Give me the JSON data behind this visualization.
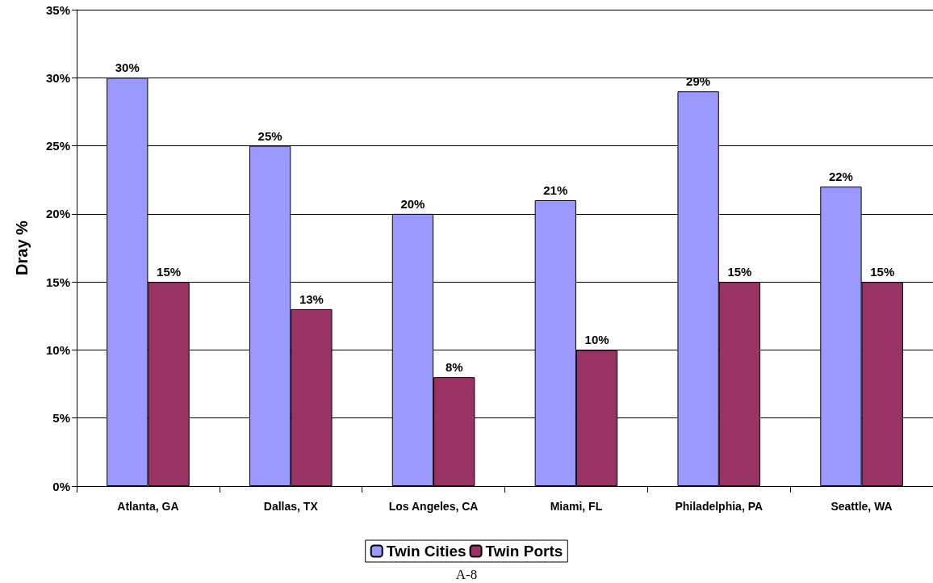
{
  "chart_data": {
    "type": "bar",
    "ylabel": "Dray %",
    "categories": [
      "Atlanta, GA",
      "Dallas, TX",
      "Los Angeles, CA",
      "Miami, FL",
      "Philadelphia, PA",
      "Seattle, WA"
    ],
    "series": [
      {
        "name": "Twin Cities",
        "color": "#9999ff",
        "values": [
          30,
          25,
          20,
          21,
          29,
          22
        ],
        "value_labels": [
          "30%",
          "25%",
          "20%",
          "21%",
          "29%",
          "22%"
        ]
      },
      {
        "name": "Twin Ports",
        "color": "#993366",
        "values": [
          15,
          13,
          8,
          10,
          15,
          15
        ],
        "value_labels": [
          "15%",
          "13%",
          "8%",
          "10%",
          "15%",
          "15%"
        ]
      }
    ],
    "ylim": [
      0,
      35
    ],
    "yticks": [
      {
        "value": 0,
        "label": "0%"
      },
      {
        "value": 5,
        "label": "5%"
      },
      {
        "value": 10,
        "label": "10%"
      },
      {
        "value": 15,
        "label": "15%"
      },
      {
        "value": 20,
        "label": "20%"
      },
      {
        "value": 25,
        "label": "25%"
      },
      {
        "value": 30,
        "label": "30%"
      },
      {
        "value": 35,
        "label": "35%"
      }
    ],
    "grid": "y",
    "legend": "bottom",
    "annotations": [
      "A-8"
    ]
  }
}
